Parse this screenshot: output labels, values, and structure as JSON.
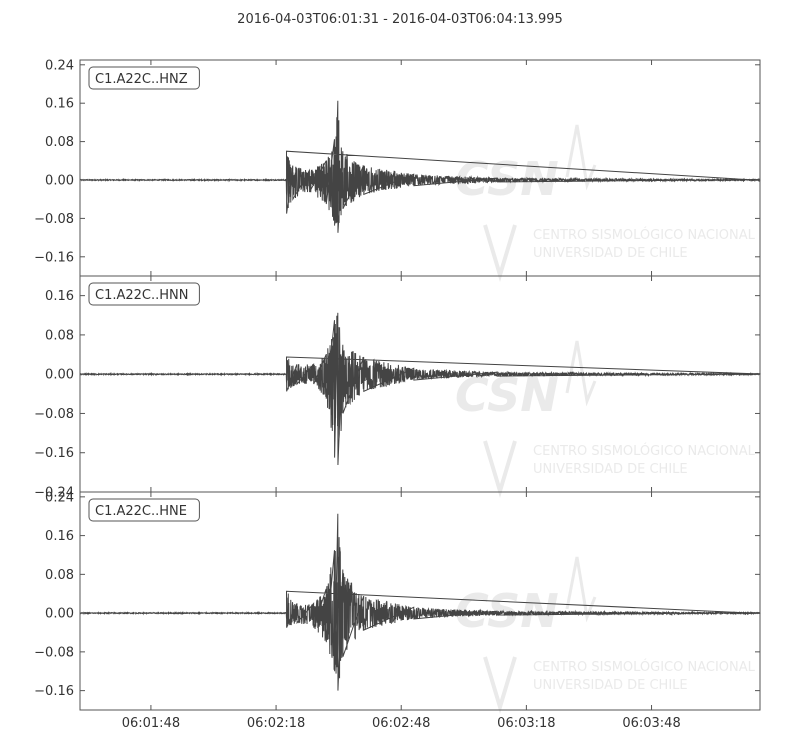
{
  "title": "2016-04-03T06:01:31  -  2016-04-03T06:04:13.995",
  "watermark": {
    "logo": "CSN",
    "line1": "CENTRO SISMOLÓGICO NACIONAL",
    "line2": "UNIVERSIDAD DE CHILE"
  },
  "colors": {
    "trace": "#444444",
    "axis": "#555555",
    "watermark": "#e8e8e8"
  },
  "chart_data": {
    "type": "line",
    "x_unit": "time (UTC)",
    "x_start": "06:01:31",
    "x_end": "06:04:13.995",
    "x_ticks": [
      "06:01:48",
      "06:02:18",
      "06:02:48",
      "06:03:18",
      "06:03:48"
    ],
    "x_tick_seconds": [
      17,
      47,
      77,
      107,
      137
    ],
    "x_range_seconds": [
      0,
      163
    ],
    "traces": [
      {
        "name": "C1.A22C..HNZ",
        "ylim": [
          -0.2,
          0.25
        ],
        "yticks": [
          -0.16,
          -0.08,
          0.0,
          0.08,
          0.16,
          0.24
        ],
        "ytick_labels": [
          "−0.16",
          "−0.08",
          "0.00",
          "0.08",
          "0.16",
          "0.24"
        ],
        "onset_s": 49.5,
        "envelope": [
          {
            "t": 49.5,
            "max": 0.06,
            "min": -0.07
          },
          {
            "t": 51,
            "max": 0.03,
            "min": -0.04
          },
          {
            "t": 55,
            "max": 0.02,
            "min": -0.025
          },
          {
            "t": 59,
            "max": 0.04,
            "min": -0.05
          },
          {
            "t": 61,
            "max": 0.085,
            "min": -0.095
          },
          {
            "t": 61.8,
            "max": 0.165,
            "min": -0.11
          },
          {
            "t": 63,
            "max": 0.06,
            "min": -0.06
          },
          {
            "t": 68,
            "max": 0.03,
            "min": -0.03
          },
          {
            "t": 80,
            "max": 0.012,
            "min": -0.012
          },
          {
            "t": 100,
            "max": 0.004,
            "min": -0.004
          },
          {
            "t": 163,
            "max": 0.001,
            "min": -0.001
          }
        ]
      },
      {
        "name": "C1.A22C..HNN",
        "ylim": [
          -0.24,
          0.2
        ],
        "yticks": [
          -0.24,
          -0.16,
          -0.08,
          0.0,
          0.08,
          0.16
        ],
        "ytick_labels": [
          "−0.24",
          "−0.16",
          "−0.08",
          "0.00",
          "0.08",
          "0.16"
        ],
        "onset_s": 49.5,
        "envelope": [
          {
            "t": 49.5,
            "max": 0.035,
            "min": -0.035
          },
          {
            "t": 52,
            "max": 0.02,
            "min": -0.02
          },
          {
            "t": 56,
            "max": 0.02,
            "min": -0.02
          },
          {
            "t": 59,
            "max": 0.04,
            "min": -0.05
          },
          {
            "t": 61,
            "max": 0.11,
            "min": -0.17
          },
          {
            "t": 61.8,
            "max": 0.125,
            "min": -0.185
          },
          {
            "t": 63,
            "max": 0.06,
            "min": -0.08
          },
          {
            "t": 68,
            "max": 0.035,
            "min": -0.035
          },
          {
            "t": 80,
            "max": 0.012,
            "min": -0.012
          },
          {
            "t": 100,
            "max": 0.004,
            "min": -0.004
          },
          {
            "t": 163,
            "max": 0.001,
            "min": -0.001
          }
        ]
      },
      {
        "name": "C1.A22C..HNE",
        "ylim": [
          -0.2,
          0.25
        ],
        "yticks": [
          -0.16,
          -0.08,
          0.0,
          0.08,
          0.16,
          0.24
        ],
        "ytick_labels": [
          "−0.16",
          "−0.08",
          "0.00",
          "0.08",
          "0.16",
          "0.24"
        ],
        "onset_s": 49.5,
        "envelope": [
          {
            "t": 49.5,
            "max": 0.045,
            "min": -0.03
          },
          {
            "t": 52,
            "max": 0.02,
            "min": -0.02
          },
          {
            "t": 56,
            "max": 0.02,
            "min": -0.03
          },
          {
            "t": 59,
            "max": 0.05,
            "min": -0.06
          },
          {
            "t": 61,
            "max": 0.13,
            "min": -0.12
          },
          {
            "t": 61.8,
            "max": 0.205,
            "min": -0.16
          },
          {
            "t": 63,
            "max": 0.09,
            "min": -0.09
          },
          {
            "t": 68,
            "max": 0.035,
            "min": -0.035
          },
          {
            "t": 80,
            "max": 0.012,
            "min": -0.012
          },
          {
            "t": 100,
            "max": 0.004,
            "min": -0.004
          },
          {
            "t": 163,
            "max": 0.001,
            "min": -0.001
          }
        ]
      }
    ],
    "grid": false,
    "legend": "none"
  }
}
